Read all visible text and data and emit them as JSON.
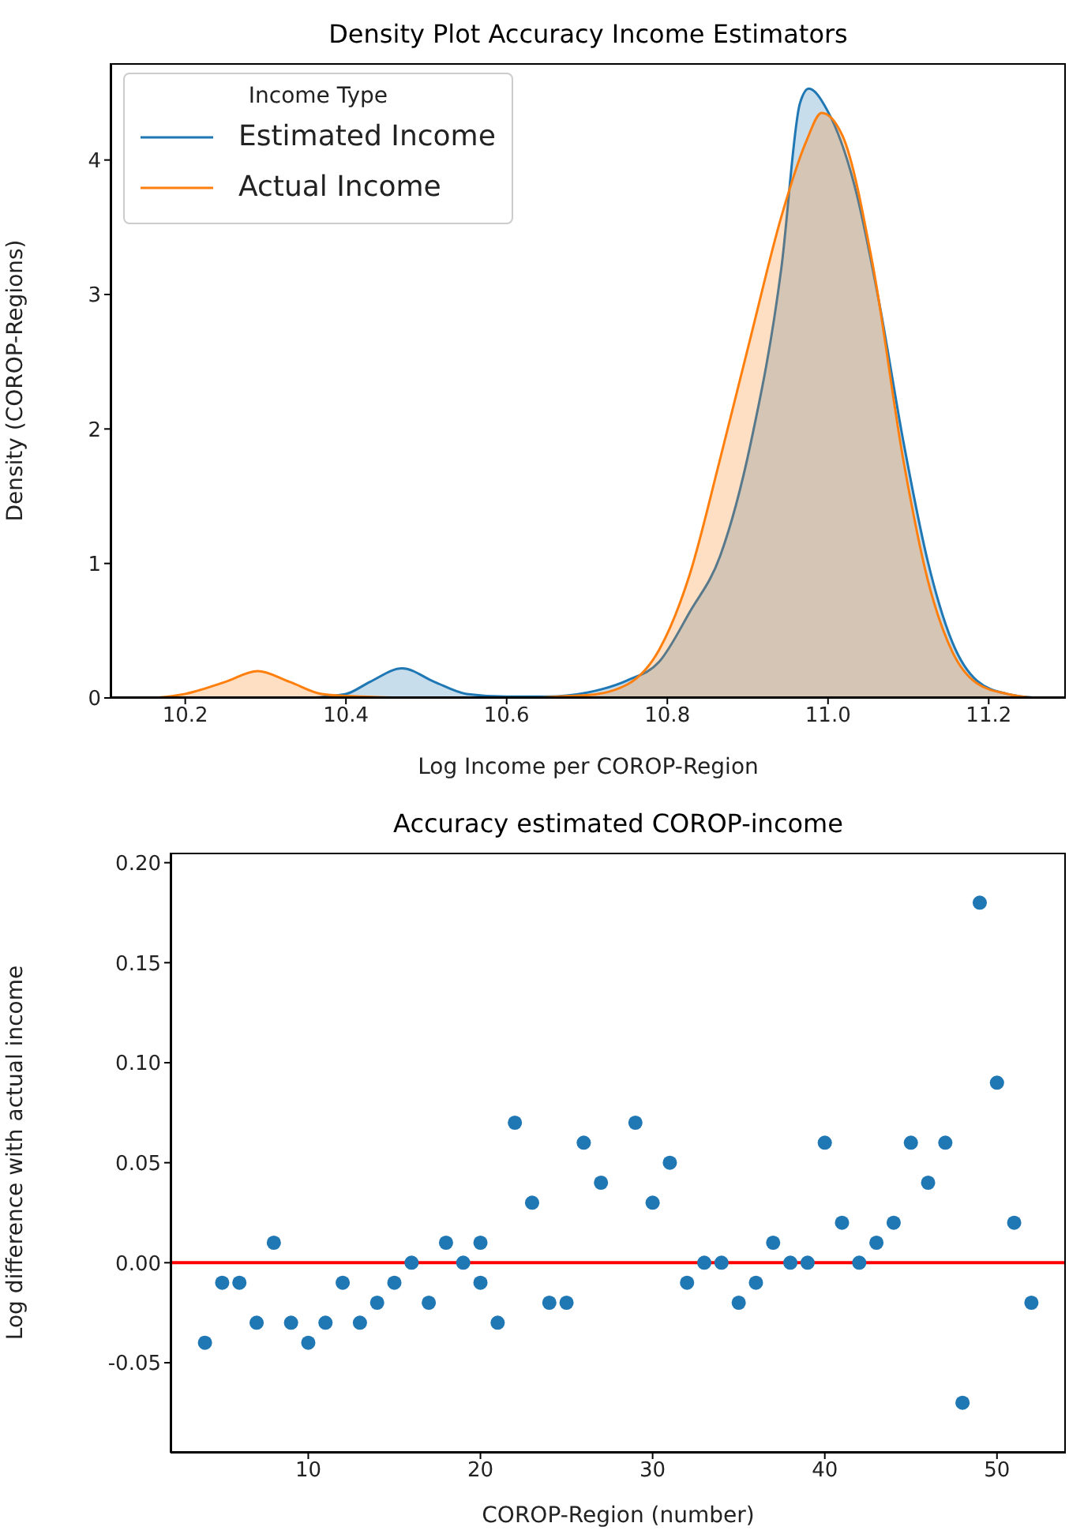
{
  "chart_data": [
    {
      "type": "area",
      "title": "Density Plot Accuracy Income Estimators",
      "xlabel": "Log Income per COROP-Region",
      "ylabel": "Density (COROP-Regions)",
      "legend_title": "Income Type",
      "legend": "top left",
      "grid": false,
      "xlim": [
        10.107,
        11.296
      ],
      "xticks": [
        10.2,
        10.4,
        10.6,
        10.8,
        {
          "value": 11,
          "label": "11.0"
        },
        11.2
      ],
      "ylim": [
        0,
        4.72
      ],
      "yticks": [
        0,
        1,
        2,
        3,
        4
      ],
      "series": [
        {
          "name": "Estimated Income",
          "color": "#1f77b4",
          "x": [
            10.35,
            10.4,
            10.43,
            10.47,
            10.51,
            10.55,
            10.6,
            10.65,
            10.7,
            10.75,
            10.79,
            10.828,
            10.866,
            10.904,
            10.942,
            10.965,
            10.976,
            10.999,
            11.033,
            11.064,
            11.094,
            11.124,
            11.155,
            11.185,
            11.223,
            11.261
          ],
          "values": [
            0,
            0.03,
            0.12,
            0.22,
            0.12,
            0.03,
            0.01,
            0.01,
            0.04,
            0.13,
            0.27,
            0.64,
            1.06,
            1.9,
            3.2,
            4.42,
            4.53,
            4.37,
            3.81,
            2.93,
            1.9,
            1.02,
            0.41,
            0.13,
            0.03,
            0
          ]
        },
        {
          "name": "Actual Income",
          "color": "#ff7f0e",
          "x": [
            10.16,
            10.2,
            10.25,
            10.29,
            10.33,
            10.37,
            10.42,
            10.5,
            10.6,
            10.7,
            10.75,
            10.79,
            10.828,
            10.865,
            10.904,
            10.942,
            10.973,
            10.992,
            11.018,
            11.056,
            11.094,
            11.124,
            11.155,
            11.185,
            11.223,
            11.257
          ],
          "values": [
            0,
            0.03,
            0.12,
            0.2,
            0.12,
            0.03,
            0.01,
            0,
            0,
            0.02,
            0.1,
            0.36,
            0.92,
            1.76,
            2.69,
            3.58,
            4.14,
            4.35,
            4.18,
            3.21,
            1.76,
            0.88,
            0.34,
            0.11,
            0.03,
            0
          ]
        }
      ]
    },
    {
      "type": "scatter",
      "title": "Accuracy estimated COROP-income",
      "xlabel": "COROP-Region (number)",
      "ylabel": "Log difference with actual income",
      "grid": false,
      "marker": "circle",
      "xlim": [
        2,
        54
      ],
      "xticks": [
        10,
        20,
        30,
        40,
        50
      ],
      "ylim": [
        -0.095,
        0.205
      ],
      "yticks": [
        {
          "value": -0.05,
          "label": "-0.05"
        },
        {
          "value": 0,
          "label": "0.00"
        },
        0.05,
        {
          "value": 0.1,
          "label": "0.10"
        },
        0.15,
        {
          "value": 0.2,
          "label": "0.20"
        }
      ],
      "ref_lines": [
        {
          "axis": "y",
          "value": 0,
          "color": "#ff0000",
          "line_style": "solid"
        }
      ],
      "series": [
        {
          "color": "#1f77b4",
          "x": [
            4,
            5,
            6,
            7,
            8,
            9,
            10,
            11,
            12,
            13,
            14,
            15,
            16,
            17,
            18,
            19,
            20,
            20,
            21,
            22,
            23,
            24,
            25,
            26,
            27,
            29,
            30,
            31,
            32,
            33,
            34,
            35,
            36,
            37,
            38,
            39,
            40,
            41,
            42,
            43,
            44,
            45,
            46,
            47,
            48,
            49,
            50,
            51,
            52
          ],
          "values": [
            -0.04,
            -0.01,
            -0.01,
            -0.03,
            0.01,
            -0.03,
            -0.04,
            -0.03,
            -0.01,
            -0.03,
            -0.02,
            -0.01,
            0,
            -0.02,
            0.01,
            0,
            0.01,
            -0.01,
            -0.03,
            0.07,
            0.03,
            -0.02,
            -0.02,
            0.06,
            0.04,
            0.07,
            0.03,
            0.05,
            -0.01,
            0,
            0,
            -0.02,
            -0.01,
            0.01,
            0,
            0,
            0.06,
            0.02,
            0,
            0.01,
            0.02,
            0.06,
            0.04,
            0.06,
            -0.07,
            0.18,
            0.09,
            0.02,
            -0.02
          ]
        }
      ]
    }
  ]
}
